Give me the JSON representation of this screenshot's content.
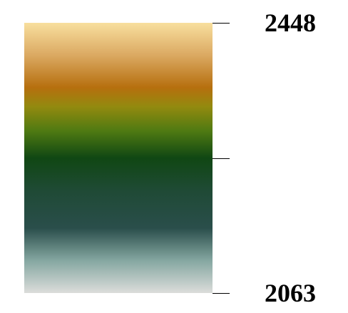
{
  "chart_data": {
    "type": "colorbar",
    "orientation": "vertical",
    "range": [
      2063,
      2448
    ],
    "ticks": [
      {
        "value": 2448,
        "label": "2448"
      },
      {
        "value": 2255.5,
        "label": ""
      },
      {
        "value": 2063,
        "label": "2063"
      }
    ],
    "colormap": [
      {
        "stop": 0.0,
        "color": "#f8df9e"
      },
      {
        "stop": 0.12,
        "color": "#dba962"
      },
      {
        "stop": 0.24,
        "color": "#b66f0e"
      },
      {
        "stop": 0.31,
        "color": "#938a0f"
      },
      {
        "stop": 0.4,
        "color": "#4f7a12"
      },
      {
        "stop": 0.5,
        "color": "#104713"
      },
      {
        "stop": 0.62,
        "color": "#1f4a35"
      },
      {
        "stop": 0.76,
        "color": "#2a4e4b"
      },
      {
        "stop": 0.88,
        "color": "#85a7a1"
      },
      {
        "stop": 1.0,
        "color": "#dcdddb"
      }
    ]
  }
}
